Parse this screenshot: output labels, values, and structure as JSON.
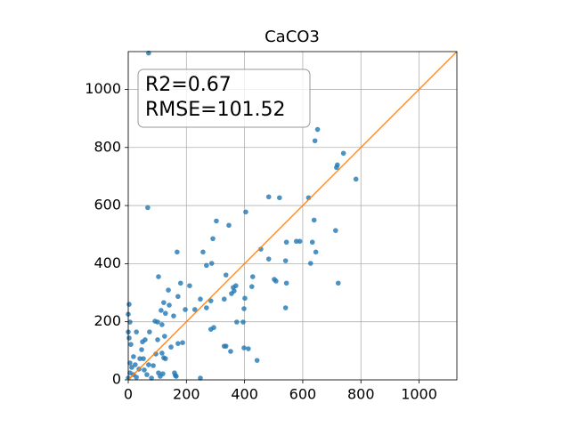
{
  "chart_data": {
    "type": "scatter",
    "title": "CaCO3",
    "annotations": [
      "R2=0.67",
      "RMSE=101.52"
    ],
    "color": "#1f77b4",
    "line_color": "#ff7f0e",
    "grid": true,
    "xlim": [
      0,
      1130
    ],
    "ylim": [
      0,
      1130
    ],
    "xticks": [
      0,
      200,
      400,
      600,
      800,
      1000
    ],
    "yticks": [
      0,
      200,
      400,
      600,
      800,
      1000
    ],
    "x": [
      70,
      67,
      651,
      642,
      740,
      719,
      716,
      783,
      483,
      520,
      620,
      404,
      303,
      639,
      578,
      590,
      544,
      633,
      713,
      346,
      291,
      456,
      257,
      645,
      541,
      483,
      627,
      168,
      287,
      269,
      502,
      508,
      544,
      722,
      104,
      336,
      370,
      361,
      428,
      425,
      180,
      211,
      138,
      171,
      330,
      355,
      364,
      284,
      269,
      248,
      401,
      398,
      541,
      122,
      141,
      113,
      92,
      128,
      156,
      196,
      229,
      101,
      116,
      294,
      284,
      373,
      395,
      3,
      0,
      6,
      28,
      73,
      58,
      49,
      0,
      3,
      9,
      125,
      101,
      171,
      187,
      147,
      336,
      330,
      398,
      413,
      352,
      443,
      95,
      116,
      40,
      52,
      18,
      128,
      122,
      86,
      70,
      24,
      12,
      37,
      55,
      6,
      18,
      0,
      28,
      104,
      119,
      159,
      162,
      165,
      110,
      80,
      64,
      248,
      6,
      46
    ],
    "y": [
      1125,
      593,
      862,
      823,
      780,
      740,
      731,
      691,
      630,
      627,
      627,
      578,
      547,
      550,
      477,
      477,
      474,
      474,
      514,
      532,
      486,
      450,
      440,
      440,
      410,
      416,
      401,
      440,
      401,
      394,
      346,
      340,
      333,
      333,
      355,
      361,
      324,
      318,
      355,
      321,
      333,
      324,
      309,
      287,
      278,
      297,
      306,
      272,
      248,
      278,
      281,
      245,
      248,
      266,
      257,
      239,
      202,
      229,
      220,
      242,
      242,
      199,
      190,
      180,
      174,
      199,
      199,
      260,
      226,
      199,
      165,
      165,
      138,
      131,
      165,
      144,
      122,
      150,
      138,
      125,
      128,
      113,
      116,
      116,
      110,
      107,
      98,
      67,
      89,
      92,
      73,
      73,
      80,
      73,
      76,
      49,
      52,
      52,
      43,
      37,
      34,
      24,
      18,
      6,
      9,
      24,
      21,
      24,
      15,
      12,
      12,
      6,
      18,
      6,
      58,
      104
    ]
  }
}
